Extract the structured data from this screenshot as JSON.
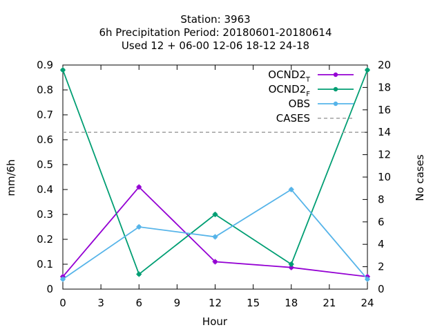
{
  "chart_data": {
    "type": "line",
    "title_lines": [
      "Station:      3963",
      "6h Precipitation   Period: 20180601-20180614",
      "Used  12 + 06-00 12-06 18-12 24-18"
    ],
    "xlabel": "Hour",
    "ylabel": "mm/6h",
    "y2label": "No cases",
    "xlim": [
      0,
      24
    ],
    "ylim": [
      0,
      0.9
    ],
    "y2lim": [
      0,
      20
    ],
    "xticks": [
      0,
      3,
      6,
      9,
      12,
      15,
      18,
      21,
      24
    ],
    "yticks": [
      "0",
      "0.1",
      "0.2",
      "0.3",
      "0.4",
      "0.5",
      "0.6",
      "0.7",
      "0.8",
      "0.9"
    ],
    "y2ticks": [
      0,
      2,
      4,
      6,
      8,
      10,
      12,
      14,
      16,
      18,
      20
    ],
    "grid": false,
    "legend_position": "top-right",
    "x": [
      0,
      6,
      12,
      18,
      24
    ],
    "series": [
      {
        "name": "OCND2",
        "subscript": "T",
        "color": "#9400d3",
        "axis": "y1",
        "dashed": false,
        "values": [
          0.05,
          0.41,
          0.11,
          0.087,
          0.05
        ]
      },
      {
        "name": "OCND2",
        "subscript": "F",
        "color": "#009e73",
        "axis": "y1",
        "dashed": false,
        "values": [
          0.88,
          0.06,
          0.3,
          0.1,
          0.88
        ]
      },
      {
        "name": "OBS",
        "subscript": "",
        "color": "#56b4e9",
        "axis": "y1",
        "dashed": false,
        "values": [
          0.04,
          0.25,
          0.21,
          0.4,
          0.04
        ]
      },
      {
        "name": "CASES",
        "subscript": "",
        "color": "#a0a0a0",
        "axis": "y2",
        "dashed": true,
        "values": [
          14,
          14,
          14,
          14,
          14
        ]
      }
    ]
  }
}
